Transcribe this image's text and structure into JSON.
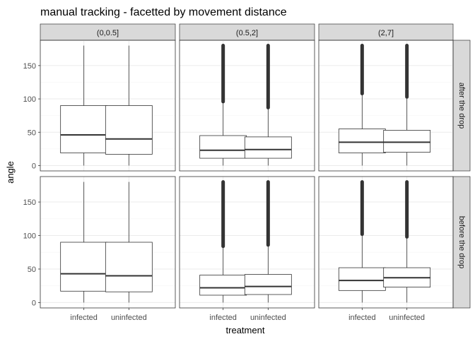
{
  "chart_data": {
    "type": "boxplot",
    "title": "manual tracking - facetted by movement distance",
    "xlabel": "treatment",
    "ylabel": "angle",
    "categories": [
      "infected",
      "uninfected"
    ],
    "col_facets": [
      "(0,0.5]",
      "(0.5,2]",
      "(2,7]"
    ],
    "row_facets": [
      "after the drop",
      "before the drop"
    ],
    "ylim": [
      -8,
      188
    ],
    "yticks": [
      0,
      50,
      100,
      150
    ],
    "grid": true,
    "panels": [
      {
        "row": "after the drop",
        "col": "(0,0.5]",
        "boxes": [
          {
            "category": "infected",
            "min": 0,
            "q1": 19,
            "median": 46,
            "q3": 90,
            "max": 180,
            "outliers_from": null
          },
          {
            "category": "uninfected",
            "min": 0,
            "q1": 17,
            "median": 40,
            "q3": 90,
            "max": 180,
            "outliers_from": null
          }
        ]
      },
      {
        "row": "after the drop",
        "col": "(0.5,2]",
        "boxes": [
          {
            "category": "infected",
            "min": 0,
            "q1": 11,
            "median": 23,
            "q3": 45,
            "max": 96,
            "outliers_from": 96
          },
          {
            "category": "uninfected",
            "min": 0,
            "q1": 11,
            "median": 24,
            "q3": 43,
            "max": 87,
            "outliers_from": 87
          }
        ]
      },
      {
        "row": "after the drop",
        "col": "(2,7]",
        "boxes": [
          {
            "category": "infected",
            "min": 0,
            "q1": 19,
            "median": 35,
            "q3": 55,
            "max": 108,
            "outliers_from": 108
          },
          {
            "category": "uninfected",
            "min": 0,
            "q1": 20,
            "median": 35,
            "q3": 53,
            "max": 103,
            "outliers_from": 103
          }
        ]
      },
      {
        "row": "before the drop",
        "col": "(0,0.5]",
        "boxes": [
          {
            "category": "infected",
            "min": 0,
            "q1": 17,
            "median": 43,
            "q3": 90,
            "max": 180,
            "outliers_from": null
          },
          {
            "category": "uninfected",
            "min": 0,
            "q1": 16,
            "median": 40,
            "q3": 90,
            "max": 180,
            "outliers_from": null
          }
        ]
      },
      {
        "row": "before the drop",
        "col": "(0.5,2]",
        "boxes": [
          {
            "category": "infected",
            "min": 0,
            "q1": 11,
            "median": 22,
            "q3": 41,
            "max": 84,
            "outliers_from": 84
          },
          {
            "category": "uninfected",
            "min": 0,
            "q1": 12,
            "median": 24,
            "q3": 42,
            "max": 86,
            "outliers_from": 86
          }
        ]
      },
      {
        "row": "before the drop",
        "col": "(2,7]",
        "boxes": [
          {
            "category": "infected",
            "min": 0,
            "q1": 18,
            "median": 33,
            "q3": 52,
            "max": 102,
            "outliers_from": 102
          },
          {
            "category": "uninfected",
            "min": 0,
            "q1": 23,
            "median": 37,
            "q3": 52,
            "max": 98,
            "outliers_from": 98
          }
        ]
      }
    ],
    "colors": {
      "box_fill": "#ffffff",
      "box_line": "#333333",
      "grid_major": "#ebebeb",
      "grid_minor": "#f5f5f5",
      "strip_fill": "#d9d9d9",
      "panel_border": "#333333"
    }
  }
}
